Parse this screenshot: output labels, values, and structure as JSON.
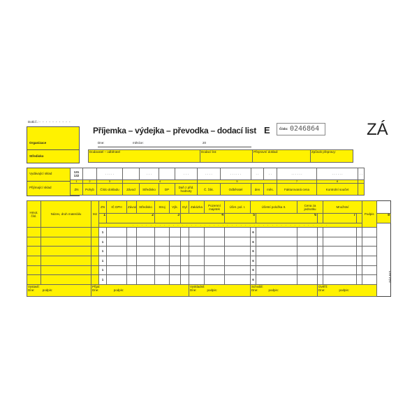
{
  "doc_no_label": "Dokl.č.:",
  "organization": "Organizace",
  "department": "Středisko",
  "title": "Příjemka – výdejka – převodka – dodací list",
  "form_letter": "E",
  "number_label": "Číslo:",
  "number": "0246864",
  "brand": "ZÁ",
  "date_line": {
    "day": "Dne:",
    "month": "měsíce:",
    "year": "20"
  },
  "transport_row": [
    "Dodavatel – odběratel",
    "Dodací list:",
    "Přepravní doklad:",
    "Způsob přepravy:"
  ],
  "warehouse": {
    "issuing": "Vydávající sklad",
    "receiving": "Přijímající sklad",
    "codes": "131 132"
  },
  "header_numbers": [
    "1",
    "2",
    "3",
    "4",
    "5",
    "6",
    "7",
    "8"
  ],
  "header_cols": [
    "ZN",
    "Pohyb",
    "Číslo dokladu",
    "Závod",
    "Středisko",
    "DP",
    "Daň z přid. hodnoty",
    "Č. žák.",
    "Odběratel",
    "den",
    "měs.",
    "Datum",
    "Fakturovaná cena",
    "Kontrolní součet"
  ],
  "main": {
    "left_cols": [
      "Hmot. čísl.",
      "Název, druh materiálu",
      "MJ"
    ],
    "cols": [
      "ZN",
      "IČ DPH",
      "Závod",
      "Středisko",
      "Stroj",
      "Výk.",
      "Dyl",
      "Zakázka",
      "Pozemní majetek",
      "Účet. pol. I.",
      "Účetní položka II.",
      "Cena za jednotku",
      "Množství",
      "Podpis"
    ],
    "col_numbers": [
      "1",
      "2",
      "3",
      "4",
      "5",
      "6",
      "7",
      "8"
    ],
    "row_zn": "1",
    "row_pol": "6",
    "footer": [
      {
        "role": "Vystavil:",
        "date": "Dne:",
        "sign": "podpis:"
      },
      {
        "role": "Přijal:",
        "date": "Dne:",
        "sign": "podpis:"
      },
      {
        "role": "Vyskladnil:",
        "date": "Dne:",
        "sign": "podpis:"
      },
      {
        "role": "Schválil:",
        "date": "Dne:",
        "sign": "podpis:"
      },
      {
        "role": "Ověřil:",
        "date": "Dne:",
        "sign": "podpis:"
      }
    ]
  },
  "form_code": "ZÁZ 077",
  "colors": {
    "yellow": "#fff200"
  }
}
